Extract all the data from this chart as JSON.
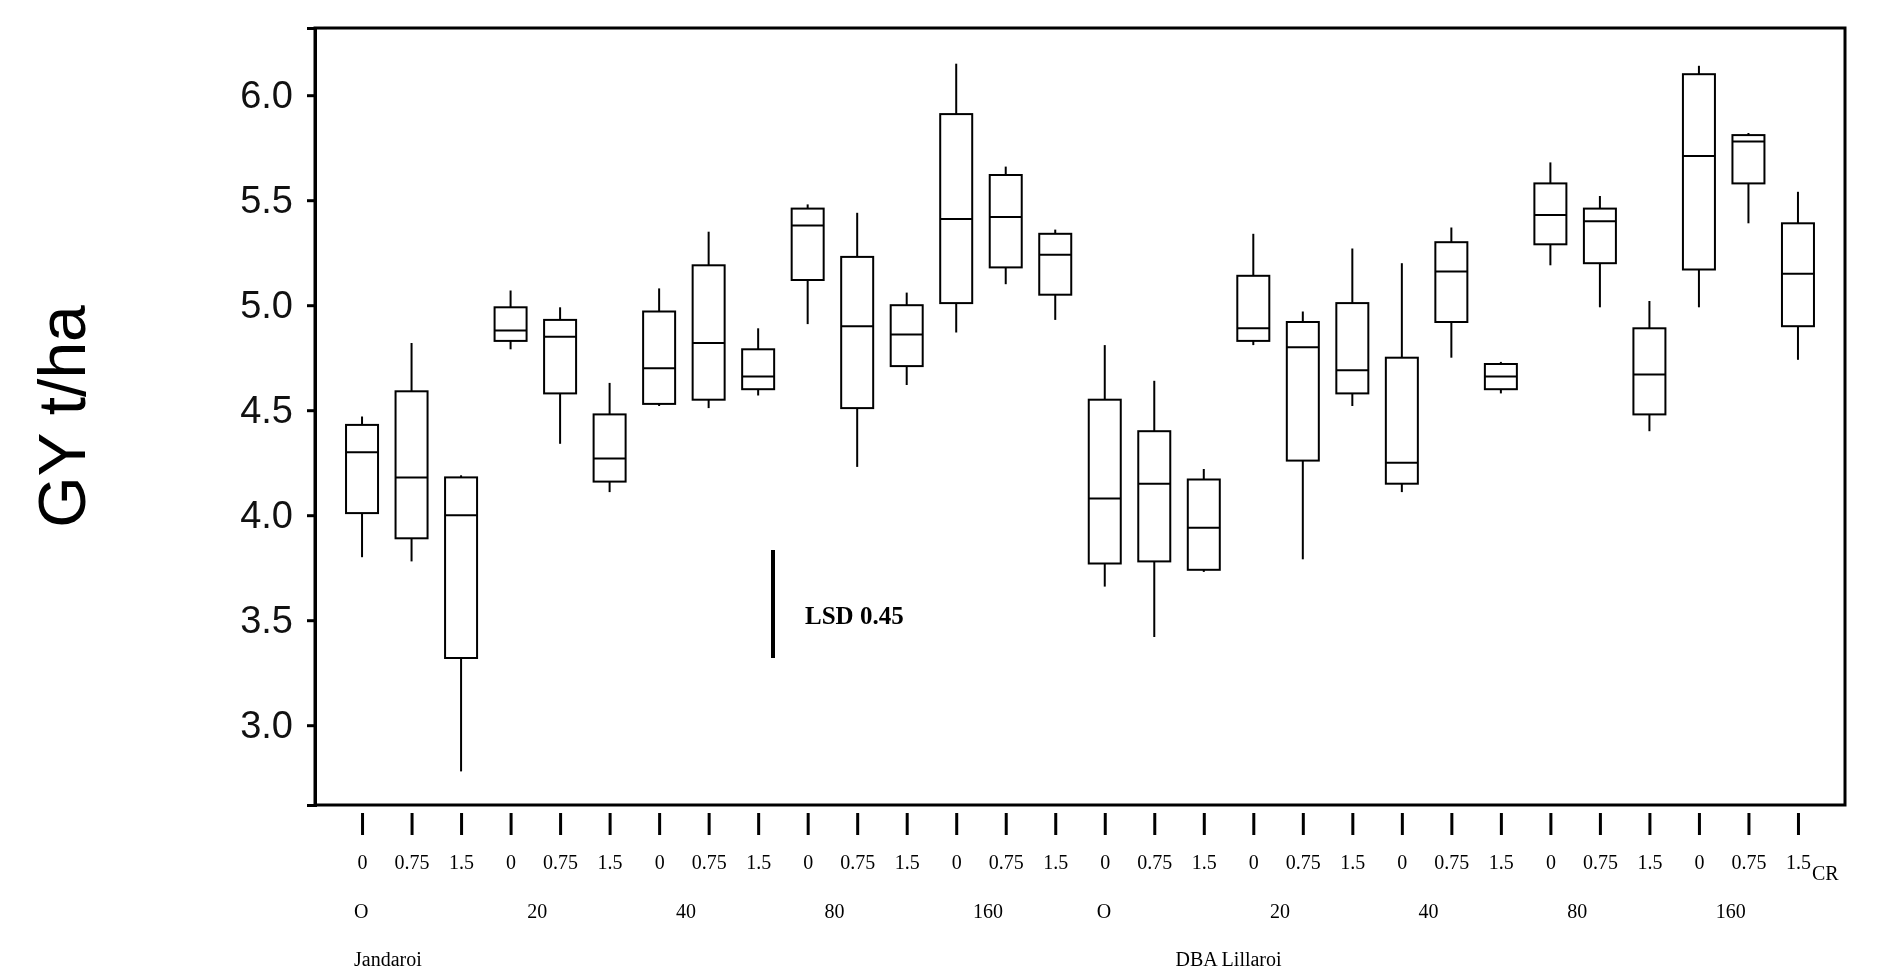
{
  "chart_data": {
    "type": "box",
    "ylabel": "GY t/ha",
    "categories": [
      "0",
      "0.75",
      "1.5",
      "0",
      "0.75",
      "1.5",
      "0",
      "0.75",
      "1.5",
      "0",
      "0.75",
      "1.5",
      "0",
      "0.75",
      "1.5",
      "0",
      "0.75",
      "1.5",
      "0",
      "0.75",
      "1.5",
      "0",
      "0.75",
      "1.5",
      "0",
      "0.75",
      "1.5",
      "0",
      "0.75",
      "1.5"
    ],
    "boxes": [
      {
        "low": 3.8,
        "q1": 4.01,
        "median": 4.3,
        "q3": 4.43,
        "high": 4.47
      },
      {
        "low": 3.78,
        "q1": 3.89,
        "median": 4.18,
        "q3": 4.59,
        "high": 4.82
      },
      {
        "low": 2.78,
        "q1": 3.32,
        "median": 4.0,
        "q3": 4.18,
        "high": 4.19
      },
      {
        "low": 4.79,
        "q1": 4.83,
        "median": 4.88,
        "q3": 4.99,
        "high": 5.07
      },
      {
        "low": 4.34,
        "q1": 4.58,
        "median": 4.85,
        "q3": 4.93,
        "high": 4.99
      },
      {
        "low": 4.11,
        "q1": 4.16,
        "median": 4.27,
        "q3": 4.48,
        "high": 4.63
      },
      {
        "low": 4.52,
        "q1": 4.53,
        "median": 4.7,
        "q3": 4.97,
        "high": 5.08
      },
      {
        "low": 4.51,
        "q1": 4.55,
        "median": 4.82,
        "q3": 5.19,
        "high": 5.35
      },
      {
        "low": 4.57,
        "q1": 4.6,
        "median": 4.66,
        "q3": 4.79,
        "high": 4.89
      },
      {
        "low": 4.91,
        "q1": 5.12,
        "median": 5.38,
        "q3": 5.46,
        "high": 5.48
      },
      {
        "low": 4.23,
        "q1": 4.51,
        "median": 4.9,
        "q3": 5.23,
        "high": 5.44
      },
      {
        "low": 4.62,
        "q1": 4.71,
        "median": 4.86,
        "q3": 5.0,
        "high": 5.06
      },
      {
        "low": 4.87,
        "q1": 5.01,
        "median": 5.41,
        "q3": 5.91,
        "high": 6.15
      },
      {
        "low": 5.1,
        "q1": 5.18,
        "median": 5.42,
        "q3": 5.62,
        "high": 5.66
      },
      {
        "low": 4.93,
        "q1": 5.05,
        "median": 5.24,
        "q3": 5.34,
        "high": 5.36
      },
      {
        "low": 3.66,
        "q1": 3.77,
        "median": 4.08,
        "q3": 4.55,
        "high": 4.81
      },
      {
        "low": 3.42,
        "q1": 3.78,
        "median": 4.15,
        "q3": 4.4,
        "high": 4.64
      },
      {
        "low": 3.73,
        "q1": 3.74,
        "median": 3.94,
        "q3": 4.17,
        "high": 4.22
      },
      {
        "low": 4.81,
        "q1": 4.83,
        "median": 4.89,
        "q3": 5.14,
        "high": 5.34
      },
      {
        "low": 3.79,
        "q1": 4.26,
        "median": 4.8,
        "q3": 4.92,
        "high": 4.97
      },
      {
        "low": 4.52,
        "q1": 4.58,
        "median": 4.69,
        "q3": 5.01,
        "high": 5.27
      },
      {
        "low": 4.11,
        "q1": 4.15,
        "median": 4.25,
        "q3": 4.75,
        "high": 5.2
      },
      {
        "low": 4.75,
        "q1": 4.92,
        "median": 5.16,
        "q3": 5.3,
        "high": 5.37
      },
      {
        "low": 4.58,
        "q1": 4.6,
        "median": 4.66,
        "q3": 4.72,
        "high": 4.73
      },
      {
        "low": 5.19,
        "q1": 5.29,
        "median": 5.43,
        "q3": 5.58,
        "high": 5.68
      },
      {
        "low": 4.99,
        "q1": 5.2,
        "median": 5.4,
        "q3": 5.46,
        "high": 5.52
      },
      {
        "low": 4.4,
        "q1": 4.48,
        "median": 4.67,
        "q3": 4.89,
        "high": 5.02
      },
      {
        "low": 4.99,
        "q1": 5.17,
        "median": 5.71,
        "q3": 6.1,
        "high": 6.14
      },
      {
        "low": 5.39,
        "q1": 5.58,
        "median": 5.78,
        "q3": 5.81,
        "high": 5.82
      },
      {
        "low": 4.74,
        "q1": 4.9,
        "median": 5.15,
        "q3": 5.39,
        "high": 5.54
      }
    ],
    "ylim": [
      2.62,
      6.32
    ],
    "yticks": [
      {
        "value": 3,
        "label": "3.0"
      },
      {
        "value": 3.5,
        "label": "3.5"
      },
      {
        "value": 4,
        "label": "4.0"
      },
      {
        "value": 4.5,
        "label": "4.5"
      },
      {
        "value": 5,
        "label": "5.0"
      },
      {
        "value": 5.5,
        "label": "5.5"
      },
      {
        "value": 6,
        "label": "6.0"
      }
    ],
    "annotations": [
      "O",
      "20",
      "40",
      "80",
      "160",
      "O",
      "20",
      "40",
      "80",
      "160",
      "Jandaroi",
      "DBA Lillaroi",
      "CR",
      "LSD 0.45"
    ]
  }
}
